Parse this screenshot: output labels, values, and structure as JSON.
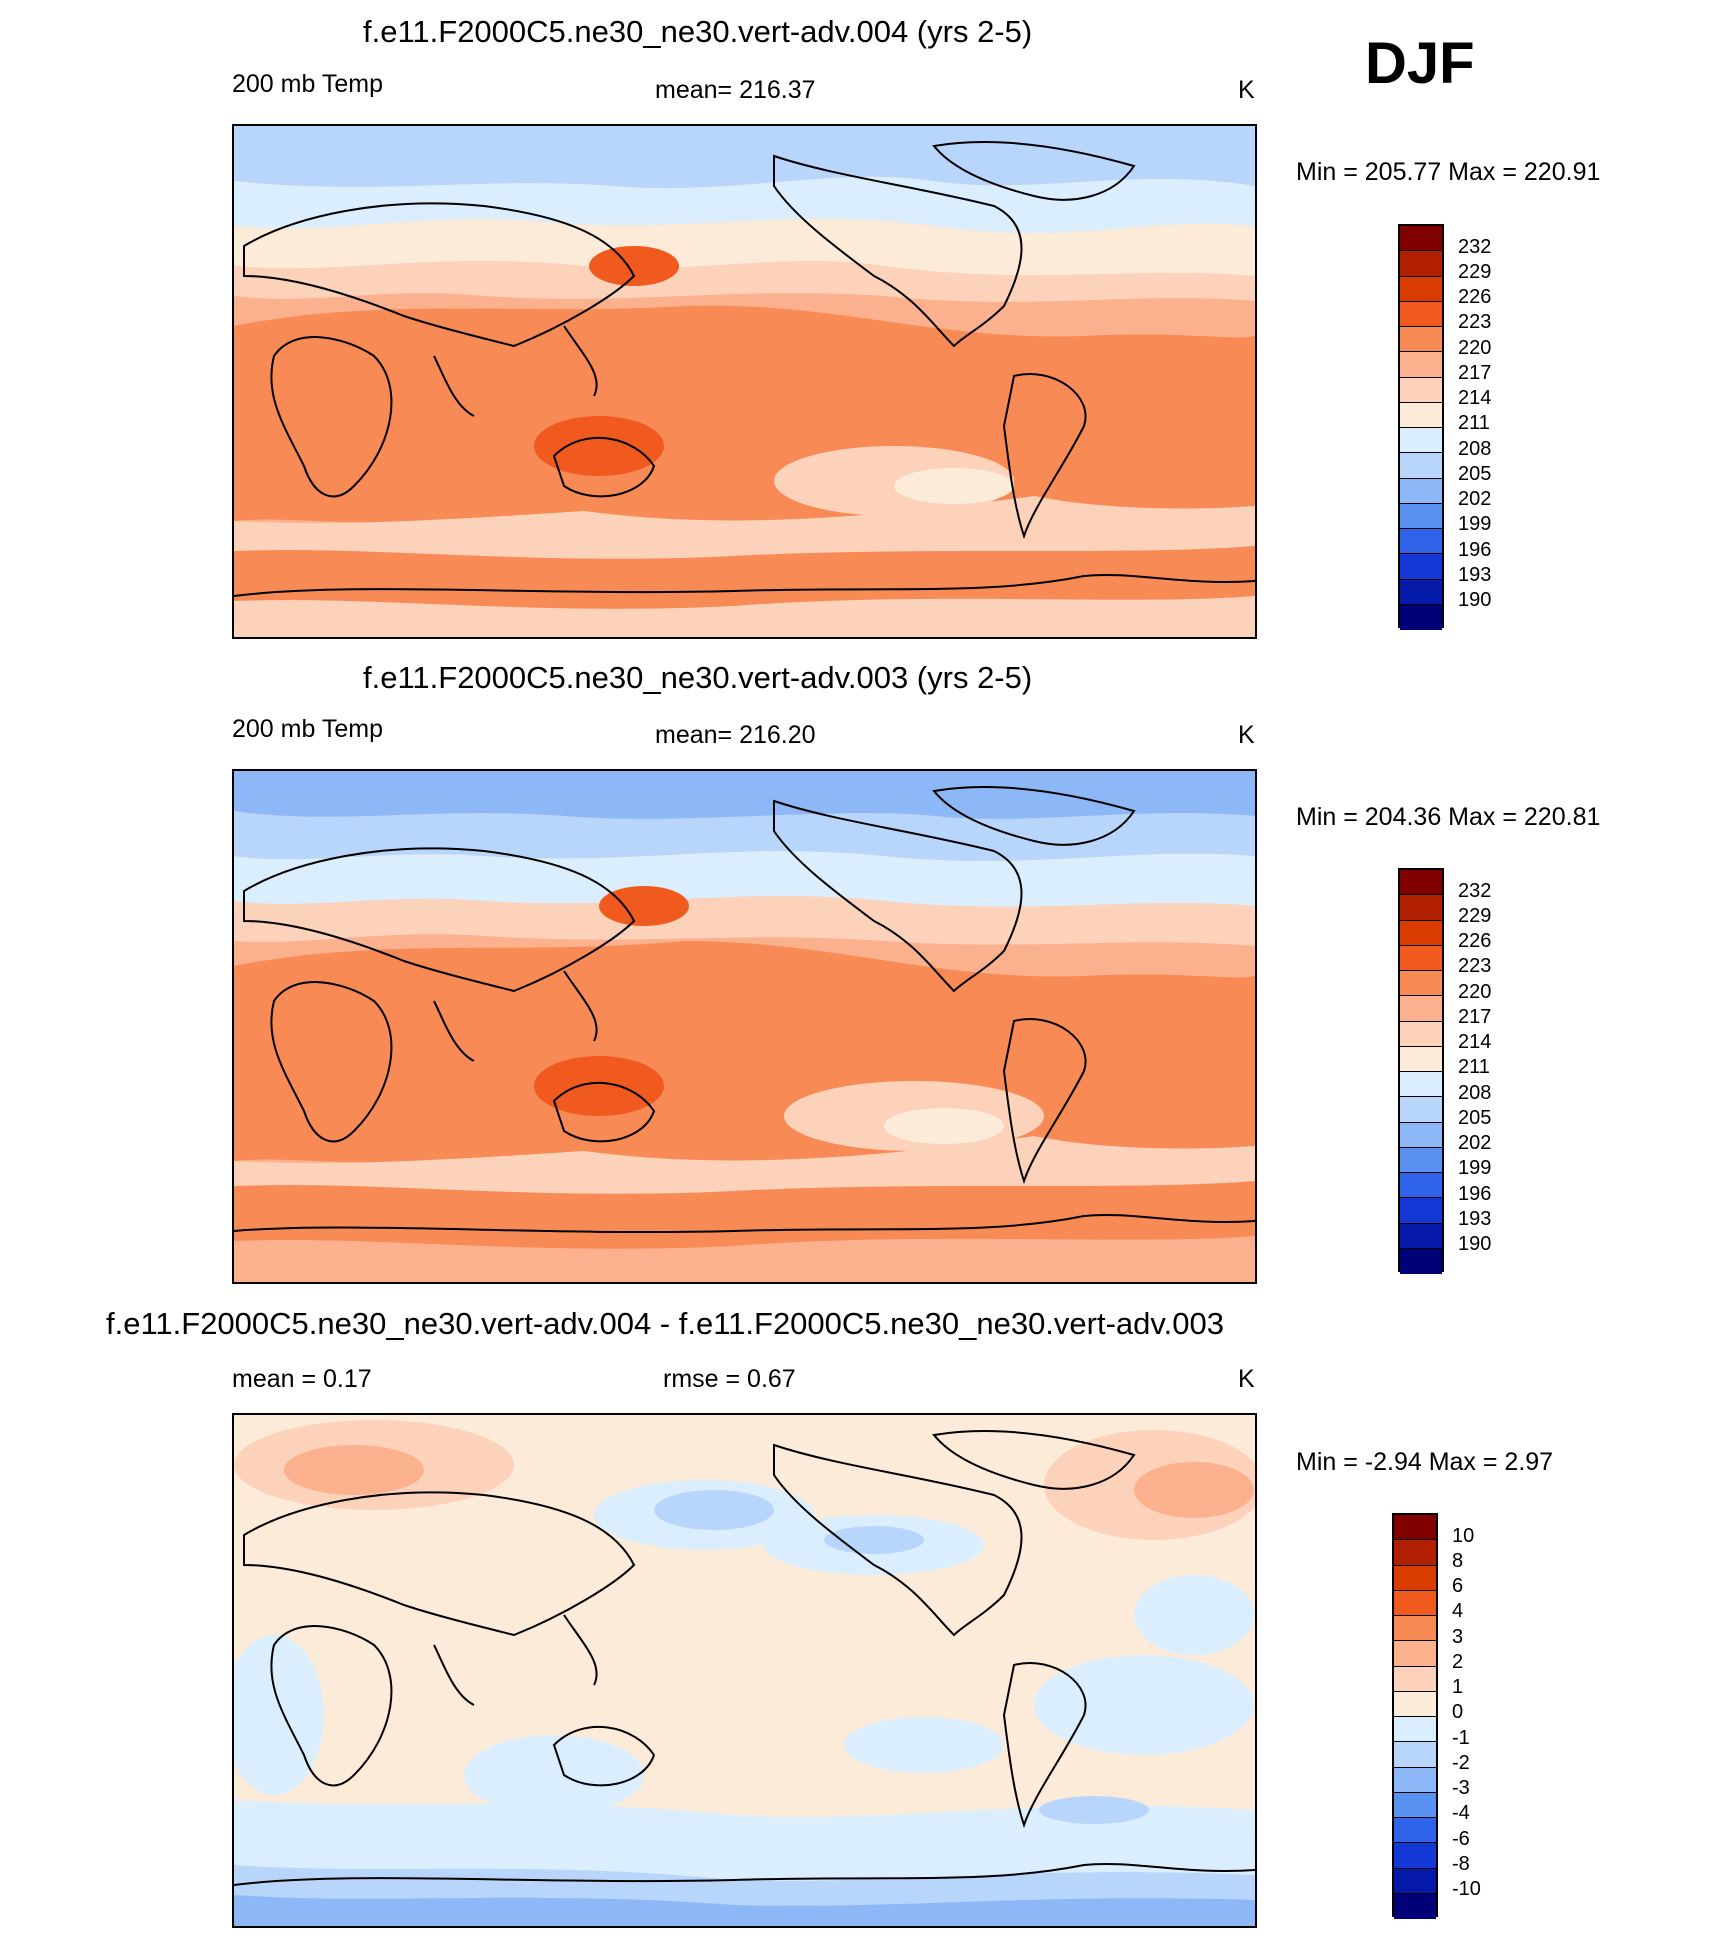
{
  "season": "DJF",
  "panels": [
    {
      "title": "f.e11.F2000C5.ne30_ne30.vert-adv.004 (yrs 2-5)",
      "left_label": "200 mb Temp",
      "center_label": "mean= 216.37",
      "units": "K",
      "minmax": "Min = 205.77 Max = 220.91",
      "colorbar": {
        "labels": [
          "232",
          "229",
          "226",
          "223",
          "220",
          "217",
          "214",
          "211",
          "208",
          "205",
          "202",
          "199",
          "196",
          "193",
          "190"
        ]
      }
    },
    {
      "title": "f.e11.F2000C5.ne30_ne30.vert-adv.003 (yrs 2-5)",
      "left_label": "200 mb Temp",
      "center_label": "mean= 216.20",
      "units": "K",
      "minmax": "Min = 204.36 Max = 220.81",
      "colorbar": {
        "labels": [
          "232",
          "229",
          "226",
          "223",
          "220",
          "217",
          "214",
          "211",
          "208",
          "205",
          "202",
          "199",
          "196",
          "193",
          "190"
        ]
      }
    },
    {
      "title": "f.e11.F2000C5.ne30_ne30.vert-adv.004 - f.e11.F2000C5.ne30_ne30.vert-adv.003",
      "left_label": "mean =   0.17",
      "center_label": "rmse =   0.67",
      "units": "K",
      "minmax": "Min =  -2.94 Max =   2.97",
      "colorbar": {
        "labels": [
          "10",
          "8",
          "6",
          "4",
          "3",
          "2",
          "1",
          "0",
          "-1",
          "-2",
          "-3",
          "-4",
          "-6",
          "-8",
          "-10"
        ]
      }
    }
  ],
  "colors": {
    "scale": [
      "#800000",
      "#b01f00",
      "#d93b00",
      "#f05a1e",
      "#f88a55",
      "#fbb08e",
      "#fdd2bb",
      "#fdebd9",
      "#dbeefd",
      "#b8d6fb",
      "#8cb8f7",
      "#5a92f2",
      "#2f64ea",
      "#1438d6",
      "#051aa8",
      "#000078"
    ]
  }
}
